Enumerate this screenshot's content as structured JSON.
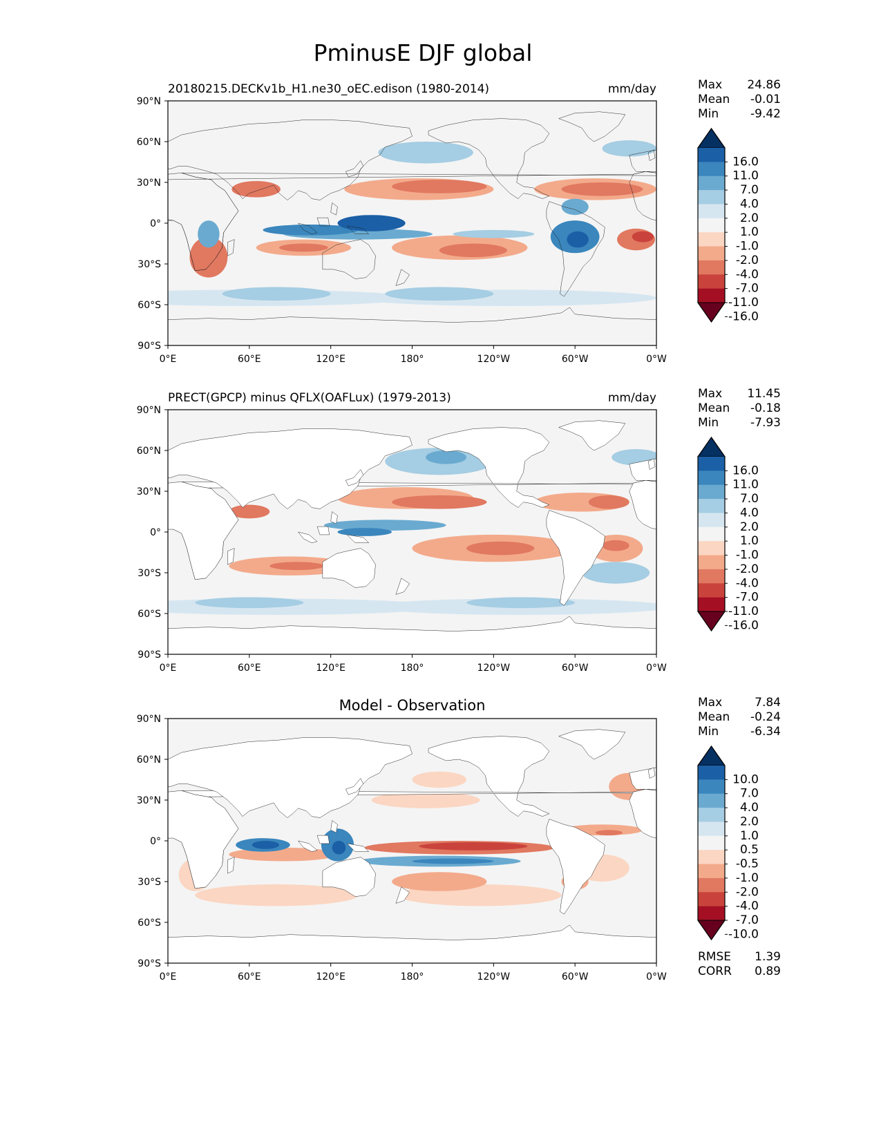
{
  "title": "PminusE DJF global",
  "lon_ticks": [
    "0°E",
    "60°E",
    "120°E",
    "180°",
    "120°W",
    "60°W",
    "0°W"
  ],
  "lat_ticks": [
    "90°N",
    "60°N",
    "30°N",
    "0°",
    "30°S",
    "60°S",
    "90°S"
  ],
  "colors": {
    "ocean": "#f4f4f4",
    "land_line": "#222222",
    "diverging": [
      "#67001f",
      "#a50f24",
      "#c9433c",
      "#e17860",
      "#f3aa8b",
      "#fbd6c2",
      "#f4f4f4",
      "#d6e6f1",
      "#a5cde3",
      "#6aaad0",
      "#3a86bd",
      "#1b5fa6",
      "#053062"
    ]
  },
  "chart_data": [
    {
      "type": "heatmap",
      "left_title": "20180215.DECKv1b_H1.ne30_oEC.edison (1980-2014)",
      "units": "mm/day",
      "stats": [
        {
          "label": "Max",
          "value": "24.86"
        },
        {
          "label": "Mean",
          "value": "-0.01"
        },
        {
          "label": "Min",
          "value": "-9.42"
        }
      ],
      "colorbar_levels": [
        "16.0",
        "11.0",
        "7.0",
        "4.0",
        "2.0",
        "1.0",
        "-1.0",
        "-2.0",
        "-4.0",
        "-7.0",
        "-11.0",
        "-16.0"
      ],
      "xlim": [
        0,
        360
      ],
      "ylim": [
        -90,
        90
      ]
    },
    {
      "type": "heatmap",
      "left_title": "PRECT(GPCP) minus QFLX(OAFLux) (1979-2013)",
      "units": "mm/day",
      "stats": [
        {
          "label": "Max",
          "value": "11.45"
        },
        {
          "label": "Mean",
          "value": "-0.18"
        },
        {
          "label": "Min",
          "value": "-7.93"
        }
      ],
      "colorbar_levels": [
        "16.0",
        "11.0",
        "7.0",
        "4.0",
        "2.0",
        "1.0",
        "-1.0",
        "-2.0",
        "-4.0",
        "-7.0",
        "-11.0",
        "-16.0"
      ],
      "xlim": [
        0,
        360
      ],
      "ylim": [
        -90,
        90
      ]
    },
    {
      "type": "heatmap",
      "center_title": "Model - Observation",
      "stats": [
        {
          "label": "Max",
          "value": "7.84"
        },
        {
          "label": "Mean",
          "value": "-0.24"
        },
        {
          "label": "Min",
          "value": "-6.34"
        }
      ],
      "colorbar_levels": [
        "10.0",
        "7.0",
        "4.0",
        "2.0",
        "1.0",
        "0.5",
        "-0.5",
        "-1.0",
        "-2.0",
        "-4.0",
        "-7.0",
        "-10.0"
      ],
      "metrics": [
        {
          "label": "RMSE",
          "value": "1.39"
        },
        {
          "label": "CORR",
          "value": "0.89"
        }
      ],
      "xlim": [
        0,
        360
      ],
      "ylim": [
        -90,
        90
      ]
    }
  ]
}
